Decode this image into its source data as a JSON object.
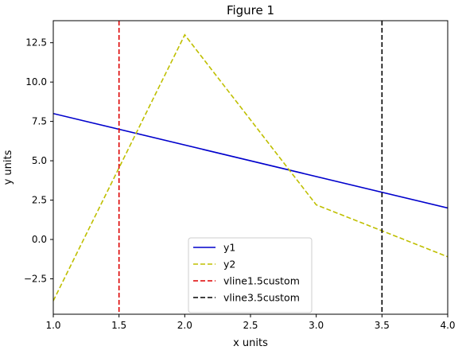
{
  "chart_data": {
    "type": "line",
    "title": "Figure 1",
    "xlabel": "x units",
    "ylabel": "y units",
    "xlim": [
      1.0,
      4.0
    ],
    "ylim": [
      -4.75,
      13.9
    ],
    "x_ticks": [
      1.0,
      1.5,
      2.0,
      2.5,
      3.0,
      3.5,
      4.0
    ],
    "y_ticks": [
      -2.5,
      0.0,
      2.5,
      5.0,
      7.5,
      10.0,
      12.5
    ],
    "x_tick_labels": [
      "1.0",
      "1.5",
      "2.0",
      "2.5",
      "3.0",
      "3.5",
      "4.0"
    ],
    "y_tick_labels": [
      "−2.5",
      "0.0",
      "2.5",
      "5.0",
      "7.5",
      "10.0",
      "12.5"
    ],
    "grid": false,
    "legend_position": "bottom-center",
    "series": [
      {
        "name": "y1",
        "x": [
          1.0,
          4.0
        ],
        "y": [
          8.0,
          2.0
        ],
        "color": "#0000cc",
        "dash": "solid"
      },
      {
        "name": "y2",
        "x": [
          1.0,
          2.0,
          3.0,
          4.0
        ],
        "y": [
          -3.9,
          13.0,
          2.2,
          -1.1
        ],
        "color": "#bfbf00",
        "dash": "dashed"
      }
    ],
    "vlines": [
      {
        "name": "vline1.5custom",
        "x": 1.5,
        "color": "#dd0000",
        "dash": "dashed"
      },
      {
        "name": "vline3.5custom",
        "x": 3.5,
        "color": "#000000",
        "dash": "dashed"
      }
    ]
  }
}
